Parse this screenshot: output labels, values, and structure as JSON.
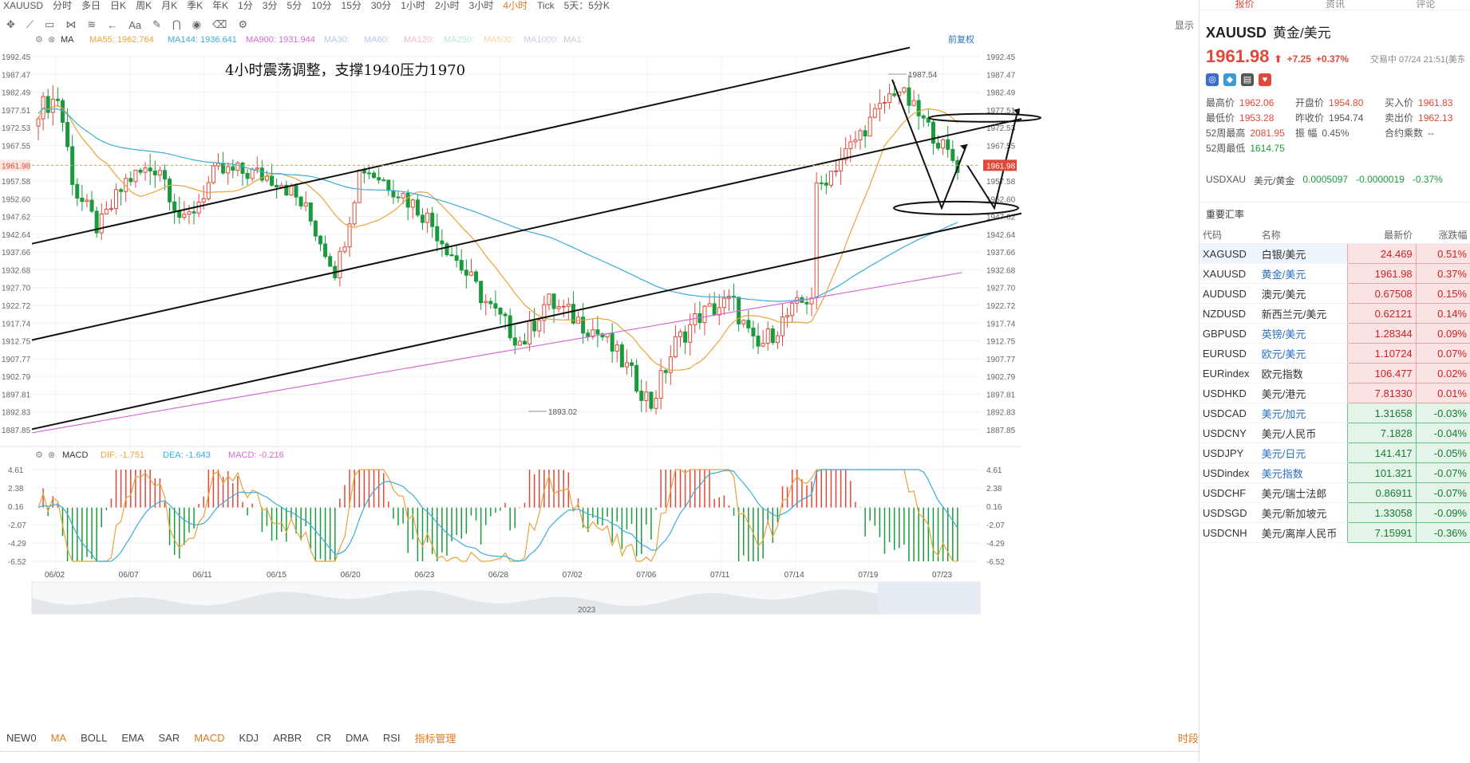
{
  "topbar": {
    "symbol": "XAUUSD",
    "periods": [
      "分时",
      "多日",
      "日K",
      "周K",
      "月K",
      "季K",
      "年K",
      "1分",
      "3分",
      "5分",
      "10分",
      "15分",
      "30分",
      "1小时",
      "2小时",
      "3小时",
      "4小时",
      "Tick",
      "5天：5分K"
    ],
    "active": "4小时"
  },
  "toolbar2": {
    "right_label": "显示"
  },
  "ma_legend": {
    "label": "MA",
    "items": [
      {
        "text": "MA55:",
        "value": "1962.764",
        "color": "#e8a33a"
      },
      {
        "text": "MA144:",
        "value": "1936.641",
        "color": "#3aaed8"
      },
      {
        "text": "MA900:",
        "value": "1931.944",
        "color": "#d56ad5"
      },
      {
        "text": "MA30:",
        "value": "",
        "color": "#b7c9f0"
      },
      {
        "text": "MA60:",
        "value": "",
        "color": "#b7c9f0"
      },
      {
        "text": "MA120:",
        "value": "",
        "color": "#f3b9c9"
      },
      {
        "text": "MA250:",
        "value": "",
        "color": "#b9e6cf"
      },
      {
        "text": "MA500:",
        "value": "",
        "color": "#f1d6a8"
      },
      {
        "text": "MA1000:",
        "value": "",
        "color": "#c9c9f3"
      },
      {
        "text": "MA1:",
        "value": "",
        "color": "#cccccc"
      }
    ],
    "right_link": "前复权"
  },
  "annotation": "4小时震荡调整，支撑1940压力1970",
  "price_axis_labels": [
    "1992.45",
    "1987.47",
    "1982.49",
    "1977.51",
    "1972.53",
    "1967.55",
    "1961.98",
    "1957.58",
    "1952.60",
    "1947.62",
    "1942.64",
    "1937.66",
    "1932.68",
    "1927.70",
    "1922.72",
    "1917.74",
    "1912.75",
    "1907.77",
    "1902.79",
    "1897.81",
    "1892.83",
    "1887.85"
  ],
  "current_price_label": "1961.98",
  "high_label": "1987.54",
  "low_label": "1893.02",
  "macd_legend": {
    "label": "MACD",
    "dif": "DIF: -1.751",
    "dea": "DEA: -1.643",
    "macd": "MACD: -0.216"
  },
  "macd_axis_labels": [
    "4.61",
    "2.38",
    "0.16",
    "-2.07",
    "-4.29",
    "-6.52"
  ],
  "date_labels": [
    "06/02",
    "06/07",
    "06/11",
    "06/15",
    "06/20",
    "06/23",
    "06/28",
    "07/02",
    "07/06",
    "07/11",
    "07/14",
    "07/19",
    "07/23"
  ],
  "navigator_year": "2023",
  "bottom_indicators": [
    "NEW0",
    "MA",
    "BOLL",
    "EMA",
    "SAR",
    "MACD",
    "KDJ",
    "ARBR",
    "CR",
    "DMA",
    "RSI",
    "指标管理"
  ],
  "bottom_right": "时段",
  "chart_data": {
    "type": "candlestick",
    "title": "4小时震荡调整，支撑1940压力1970",
    "y_range": [
      1887.85,
      1992.45
    ],
    "x_start": "06/01",
    "x_end": "07/24",
    "ma_series": [
      {
        "name": "MA55",
        "last": 1962.764
      },
      {
        "name": "MA144",
        "last": 1936.641
      },
      {
        "name": "MA900",
        "last": 1931.944
      }
    ],
    "macd": {
      "dif": -1.751,
      "dea": -1.643,
      "macd": -0.216,
      "y_range": [
        -6.52,
        4.61
      ]
    },
    "marked_high": 1987.54,
    "marked_low": 1893.02,
    "last_price": 1961.98
  },
  "right_panel": {
    "tabs": [
      "报价",
      "资讯",
      "评论"
    ],
    "symbol": "XAUUSD",
    "symbol_name": "黄金/美元",
    "price": "1961.98",
    "arrow": "⬆",
    "change": "+7.25",
    "change_pct": "+0.37%",
    "timestamp": "交易中 07/24 21:51(美东",
    "stats": [
      [
        "最高价",
        "1962.06",
        "red"
      ],
      [
        "开盘价",
        "1954.80",
        "red"
      ],
      [
        "买入价",
        "1961.83",
        "red"
      ],
      [
        "最低价",
        "1953.28",
        "red"
      ],
      [
        "昨收价",
        "1954.74",
        ""
      ],
      [
        "卖出价",
        "1962.13",
        "red"
      ],
      [
        "52周最高",
        "2081.95",
        "red"
      ],
      [
        "振    幅",
        "0.45%",
        ""
      ],
      [
        "合约乘数",
        "--",
        ""
      ],
      [
        "52周最低",
        "1614.75",
        "green"
      ],
      [
        "",
        "",
        " "
      ],
      [
        "",
        "",
        ""
      ]
    ],
    "usdxau": {
      "code": "USDXAU",
      "name": "美元/黄金",
      "price": "0.0005097",
      "change": "-0.0000019",
      "pct": "-0.37%"
    },
    "section_title": "重要汇率",
    "table_headers": [
      "代码",
      "名称",
      "最新价",
      "涨跌幅"
    ],
    "rates": [
      {
        "code": "XAGUSD",
        "name": "白银/美元",
        "price": "24.469",
        "pct": "0.51%",
        "dir": "pos",
        "blue": false
      },
      {
        "code": "XAUUSD",
        "name": "黄金/美元",
        "price": "1961.98",
        "pct": "0.37%",
        "dir": "pos",
        "blue": true
      },
      {
        "code": "AUDUSD",
        "name": "澳元/美元",
        "price": "0.67508",
        "pct": "0.15%",
        "dir": "pos",
        "blue": false
      },
      {
        "code": "NZDUSD",
        "name": "新西兰元/美元",
        "price": "0.62121",
        "pct": "0.14%",
        "dir": "pos",
        "blue": false
      },
      {
        "code": "GBPUSD",
        "name": "英镑/美元",
        "price": "1.28344",
        "pct": "0.09%",
        "dir": "pos",
        "blue": true
      },
      {
        "code": "EURUSD",
        "name": "欧元/美元",
        "price": "1.10724",
        "pct": "0.07%",
        "dir": "pos",
        "blue": true
      },
      {
        "code": "EURindex",
        "name": "欧元指数",
        "price": "106.477",
        "pct": "0.02%",
        "dir": "pos",
        "blue": false
      },
      {
        "code": "USDHKD",
        "name": "美元/港元",
        "price": "7.81330",
        "pct": "0.01%",
        "dir": "pos",
        "blue": false
      },
      {
        "code": "USDCAD",
        "name": "美元/加元",
        "price": "1.31658",
        "pct": "-0.03%",
        "dir": "neg",
        "blue": true
      },
      {
        "code": "USDCNY",
        "name": "美元/人民币",
        "price": "7.1828",
        "pct": "-0.04%",
        "dir": "neg",
        "blue": false
      },
      {
        "code": "USDJPY",
        "name": "美元/日元",
        "price": "141.417",
        "pct": "-0.05%",
        "dir": "neg",
        "blue": true
      },
      {
        "code": "USDindex",
        "name": "美元指数",
        "price": "101.321",
        "pct": "-0.07%",
        "dir": "neg",
        "blue": true
      },
      {
        "code": "USDCHF",
        "name": "美元/瑞士法郎",
        "price": "0.86911",
        "pct": "-0.07%",
        "dir": "neg",
        "blue": false
      },
      {
        "code": "USDSGD",
        "name": "美元/新加坡元",
        "price": "1.33058",
        "pct": "-0.09%",
        "dir": "neg",
        "blue": false
      },
      {
        "code": "USDCNH",
        "name": "美元/离岸人民币",
        "price": "7.15991",
        "pct": "-0.36%",
        "dir": "neg",
        "blue": false
      }
    ]
  }
}
